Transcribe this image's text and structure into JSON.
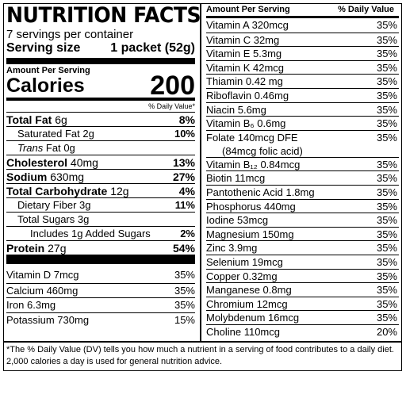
{
  "title": "NUTRITION FACTS",
  "servings_per_container": "7 servings per container",
  "serving_size": {
    "label": "Serving size",
    "value": "1 packet (52g)"
  },
  "amount_per_serving": "Amount Per Serving",
  "calories": {
    "label": "Calories",
    "value": "200"
  },
  "dv_header": "% Daily Value*",
  "nutrients": [
    {
      "name": "Total Fat",
      "amount": "6g",
      "dv": "8%"
    },
    {
      "name": "Saturated Fat",
      "amount": "2g",
      "dv": "10%"
    },
    {
      "name": "Trans",
      "name_suffix": "Fat",
      "amount": "0g",
      "dv": ""
    },
    {
      "name": "Cholesterol",
      "amount": "40mg",
      "dv": "13%"
    },
    {
      "name": "Sodium",
      "amount": "630mg",
      "dv": "27%"
    },
    {
      "name": "Total Carbohydrate",
      "amount": "12g",
      "dv": "4%"
    },
    {
      "name": "Dietary Fiber",
      "amount": "3g",
      "dv": "11%"
    },
    {
      "name": "Total Sugars",
      "amount": "3g",
      "dv": ""
    },
    {
      "name": "Includes 1g Added Sugars",
      "amount": "",
      "dv": "2%"
    },
    {
      "name": "Protein",
      "amount": "27g",
      "dv": "54%"
    }
  ],
  "minerals": [
    {
      "text": "Vitamin D 7mcg",
      "dv": "35%"
    },
    {
      "text": "Calcium 460mg",
      "dv": "35%"
    },
    {
      "text": "Iron 6.3mg",
      "dv": "35%"
    },
    {
      "text": "Potassium 730mg",
      "dv": "15%"
    }
  ],
  "right_header": {
    "left": "Amount Per Serving",
    "right": "% Daily Value"
  },
  "vitamins": [
    {
      "text": "Vitamin A  320mcg",
      "dv": "35%"
    },
    {
      "text": "Vitamin C  32mg",
      "dv": "35%"
    },
    {
      "text": "Vitamin E  5.3mg",
      "dv": "35%"
    },
    {
      "text": "Vitamin K  42mcg",
      "dv": "35%"
    },
    {
      "text": "Thiamin  0.42 mg",
      "dv": "35%"
    },
    {
      "text": "Riboflavin  0.46mg",
      "dv": "35%"
    },
    {
      "text": "Niacin  5.6mg",
      "dv": "35%"
    },
    {
      "text": "Vitamin B₆  0.6mg",
      "dv": "35%"
    },
    {
      "text": "Folate  140mcg DFE",
      "text2": "(84mcg folic acid)",
      "dv": "35%"
    },
    {
      "text": "Vitamin B₁₂  0.84mcg",
      "dv": "35%"
    },
    {
      "text": "Biotin  11mcg",
      "dv": "35%"
    },
    {
      "text": "Pantothenic Acid  1.8mg",
      "dv": "35%"
    },
    {
      "text": "Phosphorus  440mg",
      "dv": "35%"
    },
    {
      "text": "Iodine  53mcg",
      "dv": "35%"
    },
    {
      "text": "Magnesium  150mg",
      "dv": "35%"
    },
    {
      "text": "Zinc  3.9mg",
      "dv": "35%"
    },
    {
      "text": "Selenium  19mcg",
      "dv": "35%"
    },
    {
      "text": "Copper  0.32mg",
      "dv": "35%"
    },
    {
      "text": "Manganese  0.8mg",
      "dv": "35%"
    },
    {
      "text": "Chromium  12mcg",
      "dv": "35%"
    },
    {
      "text": "Molybdenum  16mcg",
      "dv": "35%"
    },
    {
      "text": "Choline  110mcg",
      "dv": "20%"
    }
  ],
  "footnote": "*The % Daily Value (DV) tells you how much a nutrient in a serving of food contributes to a daily diet. 2,000 calories a day is used for general nutrition advice."
}
